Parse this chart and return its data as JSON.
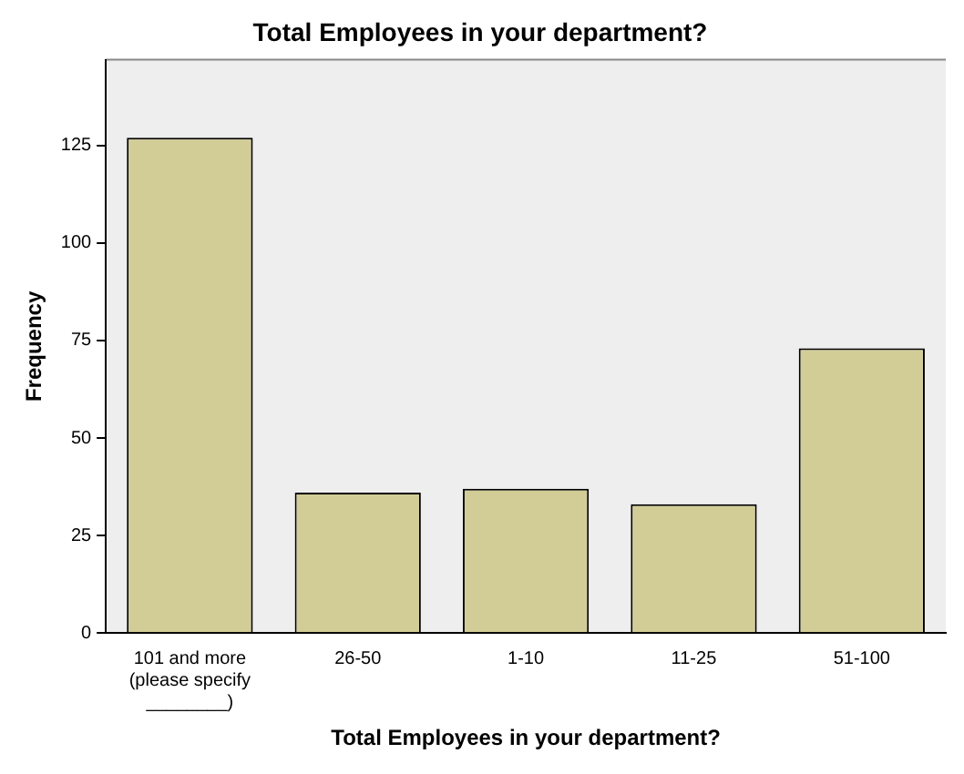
{
  "chart_data": {
    "type": "bar",
    "title": "Total Employees in your department?",
    "xlabel": "Total Employees in your department?",
    "ylabel": "Frequency",
    "categories": [
      "101 and more (please specify ________)",
      "26-50",
      "1-10",
      "11-25",
      "51-100"
    ],
    "values": [
      127,
      36,
      37,
      33,
      73
    ],
    "color": "#d2cd96",
    "ylim": [
      0,
      147
    ],
    "yticks": [
      0,
      25,
      50,
      75,
      100,
      125
    ],
    "grid": false,
    "legend": false
  }
}
